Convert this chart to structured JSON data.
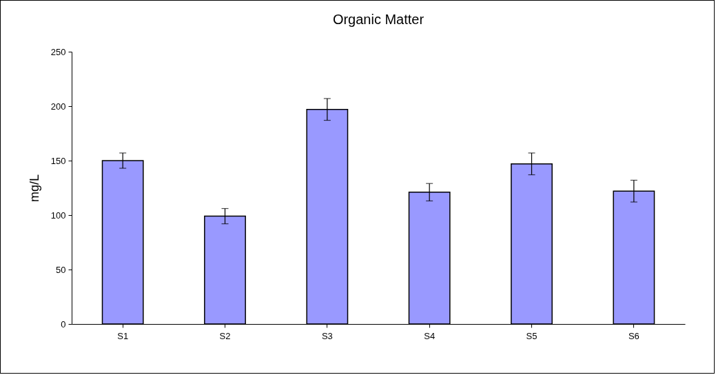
{
  "chart_data": {
    "type": "bar",
    "title": "Organic Matter",
    "ylabel": "mg/L",
    "categories": [
      "S1",
      "S2",
      "S3",
      "S4",
      "S5",
      "S6"
    ],
    "values": [
      150,
      99,
      197,
      121,
      147,
      122
    ],
    "errors": [
      7,
      7,
      10,
      8,
      10,
      10
    ],
    "color": "#9999ff",
    "ylim": [
      0,
      250
    ],
    "yticks": [
      0,
      50,
      100,
      150,
      200,
      250
    ],
    "grid": false
  }
}
